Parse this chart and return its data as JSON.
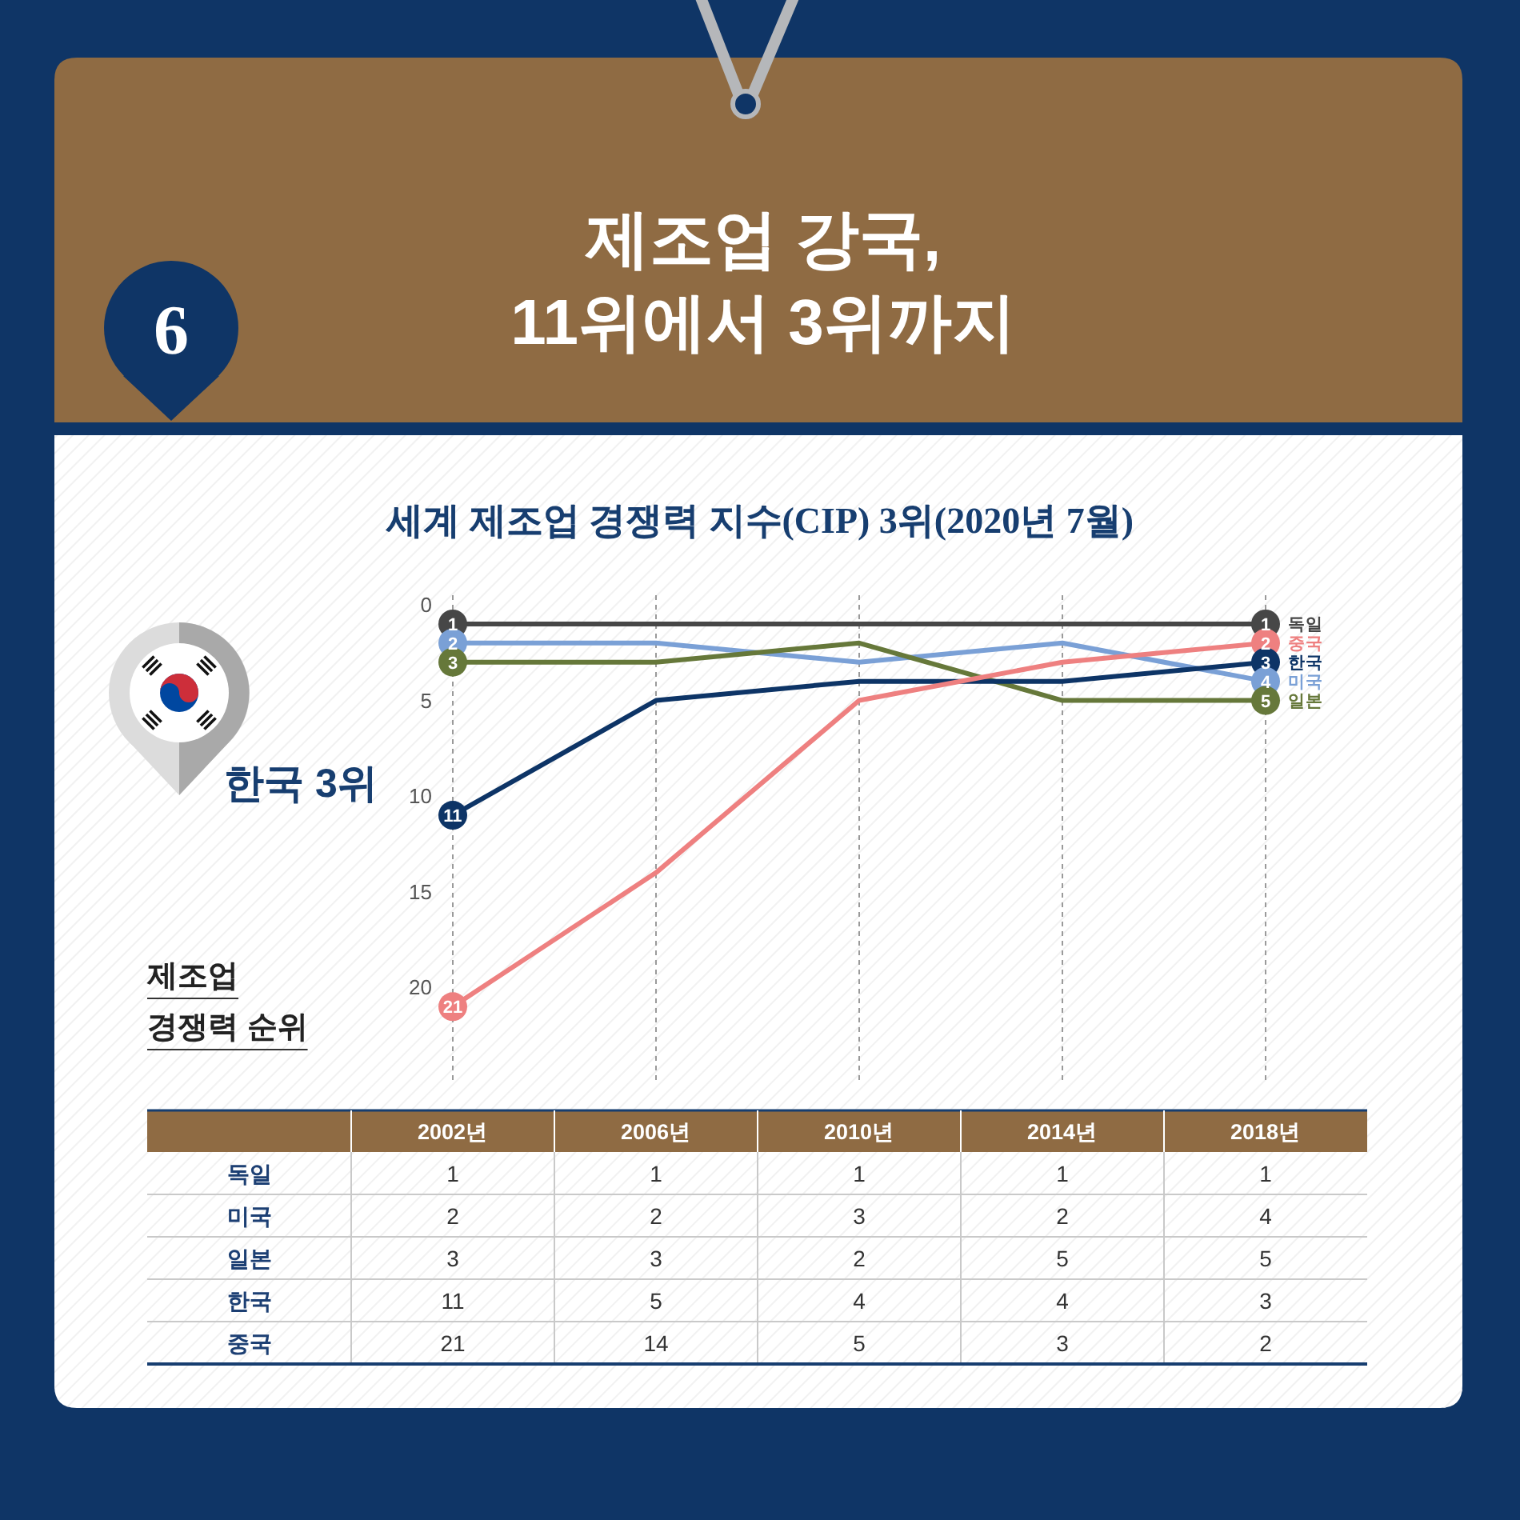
{
  "chart_data": {
    "type": "line",
    "title": "제조업 강국,\n11위에서 3위까지",
    "subtitle": "세계 제조업 경쟁력 지수(CIP) 3위(2020년 7월)",
    "ylabel": "제조업\n경쟁력 순위",
    "annotations": [
      "6",
      "한국 3위",
      {
        "text": "1",
        "x": "2002년",
        "y": 1
      },
      {
        "text": "2",
        "x": "2002년",
        "y": 2
      },
      {
        "text": "3",
        "x": "2002년",
        "y": 3
      },
      {
        "text": "11",
        "x": "2002년",
        "y": 11
      },
      {
        "text": "21",
        "x": "2002년",
        "y": 21
      },
      {
        "text": "1",
        "x": "2018년",
        "y": 1
      },
      {
        "text": "2",
        "x": "2018년",
        "y": 2
      },
      {
        "text": "3",
        "x": "2018년",
        "y": 3
      },
      {
        "text": "4",
        "x": "2018년",
        "y": 4
      },
      {
        "text": "5",
        "x": "2018년",
        "y": 5
      }
    ],
    "categories": [
      "2002년",
      "2006년",
      "2010년",
      "2014년",
      "2018년"
    ],
    "series": [
      {
        "name": "독일",
        "color": "#474747",
        "values": [
          1,
          1,
          1,
          1,
          1
        ]
      },
      {
        "name": "미국",
        "color": "#7aa0d6",
        "values": [
          2,
          2,
          3,
          2,
          4
        ]
      },
      {
        "name": "일본",
        "color": "#66783a",
        "values": [
          3,
          3,
          2,
          5,
          5
        ]
      },
      {
        "name": "한국",
        "color": "#0d3466",
        "values": [
          11,
          5,
          4,
          4,
          3
        ]
      },
      {
        "name": "중국",
        "color": "#ee8080",
        "values": [
          21,
          14,
          5,
          3,
          2
        ]
      }
    ],
    "ylim": [
      25,
      -0.5
    ],
    "yticks": [
      0,
      5,
      10,
      15,
      20
    ],
    "grid": "x",
    "line_style": "solid",
    "data_labels": true
  }
}
